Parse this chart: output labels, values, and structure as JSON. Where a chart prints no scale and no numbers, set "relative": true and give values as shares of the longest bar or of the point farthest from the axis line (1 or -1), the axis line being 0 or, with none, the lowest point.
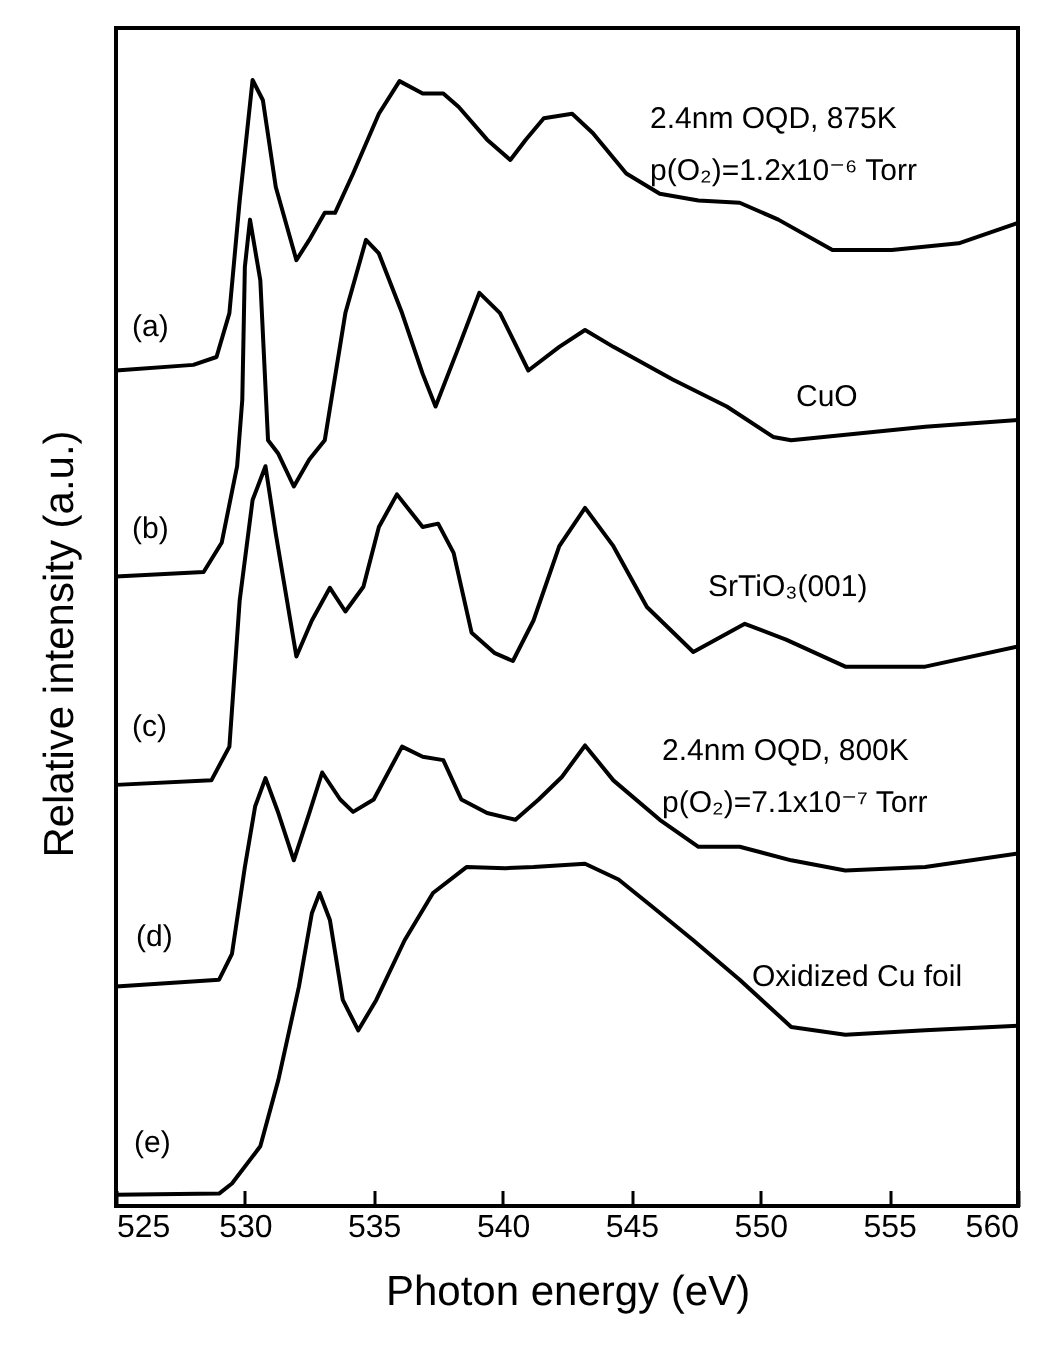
{
  "chart_data": {
    "type": "line",
    "relative": true,
    "tick_labels": "x",
    "xlabel": "Photon energy (eV)",
    "ylabel": "Relative intensity (a.u.)",
    "xlim": [
      525,
      560
    ],
    "xticks": [
      525,
      530,
      535,
      540,
      545,
      550,
      555,
      560
    ],
    "series": [
      {
        "color": "#000000",
        "x": [
          525,
          528,
          528.9,
          529.4,
          529.8,
          530.3,
          530.7,
          531.2,
          532,
          532.5,
          533.1,
          533.5,
          534.2,
          535.2,
          536,
          536.9,
          537.7,
          538.3,
          539.4,
          540.3,
          540.9,
          541.6,
          542.7,
          543.5,
          544.8,
          546.1,
          547.6,
          549.2,
          550.7,
          552.8,
          555.1,
          557.7,
          560
        ],
        "values": [
          0.742,
          0.747,
          0.754,
          0.793,
          0.893,
          1.0,
          0.982,
          0.905,
          0.84,
          0.858,
          0.882,
          0.882,
          0.917,
          0.97,
          0.999,
          0.988,
          0.988,
          0.976,
          0.947,
          0.929,
          0.947,
          0.966,
          0.97,
          0.953,
          0.917,
          0.899,
          0.893,
          0.891,
          0.876,
          0.849,
          0.849,
          0.855,
          0.873
        ]
      },
      {
        "color": "#000000",
        "x": [
          525,
          528.4,
          529.1,
          529.7,
          529.9,
          530,
          530.2,
          530.6,
          530.9,
          531.3,
          531.9,
          532.5,
          533.1,
          533.9,
          534.7,
          535.2,
          536.1,
          536.9,
          537.4,
          538.3,
          539.1,
          539.9,
          541,
          542.2,
          543.2,
          544.3,
          546.6,
          548.7,
          550.5,
          551.2,
          553.8,
          556.4,
          560
        ],
        "values": [
          0.559,
          0.563,
          0.589,
          0.657,
          0.716,
          0.834,
          0.876,
          0.822,
          0.68,
          0.668,
          0.639,
          0.663,
          0.68,
          0.793,
          0.858,
          0.846,
          0.793,
          0.739,
          0.71,
          0.763,
          0.811,
          0.793,
          0.742,
          0.763,
          0.778,
          0.763,
          0.734,
          0.71,
          0.683,
          0.68,
          0.686,
          0.692,
          0.698
        ]
      },
      {
        "color": "#000000",
        "x": [
          525,
          528.7,
          529.4,
          529.8,
          530.3,
          530.8,
          531.2,
          532,
          532.6,
          533.3,
          533.9,
          534.6,
          535.2,
          535.9,
          536.9,
          537.5,
          538.1,
          538.8,
          539.7,
          540.4,
          541.2,
          542.2,
          543.2,
          544.3,
          545.6,
          547.4,
          549.4,
          551,
          553.3,
          556.4,
          560
        ],
        "values": [
          0.374,
          0.378,
          0.408,
          0.538,
          0.627,
          0.657,
          0.597,
          0.488,
          0.52,
          0.549,
          0.528,
          0.55,
          0.603,
          0.632,
          0.603,
          0.606,
          0.58,
          0.509,
          0.491,
          0.484,
          0.52,
          0.586,
          0.62,
          0.586,
          0.532,
          0.492,
          0.517,
          0.503,
          0.479,
          0.479,
          0.497
        ]
      },
      {
        "color": "#000000",
        "x": [
          525,
          529,
          529.5,
          530,
          530.4,
          530.8,
          531.3,
          531.9,
          532.5,
          533,
          533.7,
          534.2,
          535,
          536.1,
          536.9,
          537.7,
          538.4,
          539.4,
          540.5,
          541.4,
          542.3,
          543.2,
          544.3,
          546.1,
          547.6,
          549.2,
          551.2,
          553.3,
          556.4,
          560
        ],
        "values": [
          0.195,
          0.201,
          0.224,
          0.301,
          0.355,
          0.38,
          0.349,
          0.307,
          0.349,
          0.385,
          0.361,
          0.35,
          0.361,
          0.408,
          0.399,
          0.396,
          0.361,
          0.349,
          0.343,
          0.361,
          0.381,
          0.409,
          0.378,
          0.343,
          0.319,
          0.319,
          0.307,
          0.298,
          0.301,
          0.313
        ]
      },
      {
        "color": "#000000",
        "x": [
          525,
          529,
          529.5,
          530.6,
          531.3,
          532.1,
          532.6,
          532.9,
          533.3,
          533.8,
          534.4,
          535.1,
          536.2,
          537.3,
          538.6,
          540.1,
          541.2,
          543.2,
          544.5,
          545.8,
          547.4,
          549.2,
          551.2,
          553.3,
          556.4,
          560
        ],
        "values": [
          0.01,
          0.011,
          0.02,
          0.053,
          0.112,
          0.195,
          0.26,
          0.278,
          0.254,
          0.183,
          0.156,
          0.183,
          0.236,
          0.278,
          0.301,
          0.3,
          0.301,
          0.304,
          0.29,
          0.266,
          0.236,
          0.201,
          0.159,
          0.152,
          0.156,
          0.16
        ]
      }
    ],
    "annotations": [
      "2.4nm OQD, 875K",
      "p(O₂)=1.2x10⁻⁶ Torr",
      "CuO",
      "SrTiO₃(001)",
      "2.4nm OQD, 800K",
      "p(O₂)=7.1x10⁻⁷ Torr",
      "Oxidized Cu foil",
      "(a)",
      "(b)",
      "(c)",
      "(d)",
      "(e)"
    ]
  }
}
